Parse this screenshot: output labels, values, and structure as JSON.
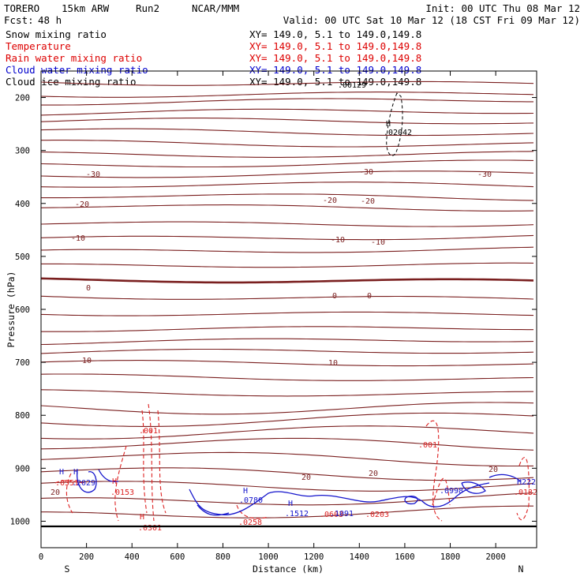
{
  "header": {
    "model": "TORERO",
    "grid": "15km ARW",
    "run": "Run2",
    "org": "NCAR/MMM",
    "init": "Init: 00 UTC Thu 08 Mar 12",
    "fcst": "Fcst:",
    "fcst_hours": "48 h",
    "valid": "Valid: 00 UTC Sat 10 Mar 12 (18 CST Fri 09 Mar 12)"
  },
  "fields": [
    {
      "name": "Snow mixing ratio",
      "xy": "XY= 149.0,  5.1 to 149.0,149.8",
      "color": "#000000"
    },
    {
      "name": "Temperature",
      "xy": "XY= 149.0,  5.1 to 149.0,149.8",
      "color": "#dd0000"
    },
    {
      "name": "Rain water mixing ratio",
      "xy": "XY= 149.0,  5.1 to 149.0,149.8",
      "color": "#dd0000"
    },
    {
      "name": "Cloud water mixing ratio",
      "xy": "XY= 149.0,  5.1 to 149.0,149.8",
      "color": "#0000cc"
    },
    {
      "name": "Cloud ice mixing ratio",
      "xy": "XY= 149.0,  5.1 to 149.0,149.8",
      "color": "#000000"
    }
  ],
  "colors": {
    "temperature": "#7a1f1f",
    "rain": "#dd2222",
    "cloud_water": "#1515cc",
    "snow": "#000000",
    "frame": "#000000"
  },
  "chart_data": {
    "type": "cross-section contour",
    "xlabel": "Distance (km)",
    "ylabel": "Pressure (hPa)",
    "xlim": [
      0,
      2180
    ],
    "ylim": [
      1050,
      150
    ],
    "x_ticks": [
      0,
      200,
      400,
      600,
      800,
      1000,
      1200,
      1400,
      1600,
      1800,
      2000
    ],
    "y_ticks": [
      200,
      300,
      400,
      500,
      600,
      700,
      800,
      900,
      1000
    ],
    "x_end_labels": {
      "left": "S",
      "right": "N"
    },
    "temperature_isotherms_degC": [
      -50,
      -45,
      -40,
      -35,
      -30,
      -25,
      -20,
      -15,
      -10,
      -5,
      0,
      5,
      10,
      15,
      20,
      25
    ],
    "temperature_labels": [
      "-30",
      "-30",
      "-30",
      "-20",
      "-20",
      "-20",
      "-10",
      "-10",
      "-10",
      "0",
      "0",
      "0",
      "10",
      "10",
      "20",
      "20",
      "20",
      "20"
    ],
    "rain_labels": [
      ".001",
      ".001",
      "H",
      "H",
      ".0258",
      ".0603",
      ".0203",
      ".0132",
      ".0551",
      ".0153",
      ".0301"
    ],
    "cloud_water_labels": [
      "H",
      "H",
      "H",
      "H",
      ".2029",
      ".0780",
      ".1512",
      ".1091",
      ".0998",
      "H222"
    ],
    "snow_labels": [
      "H",
      ".02042",
      ".00129"
    ]
  }
}
